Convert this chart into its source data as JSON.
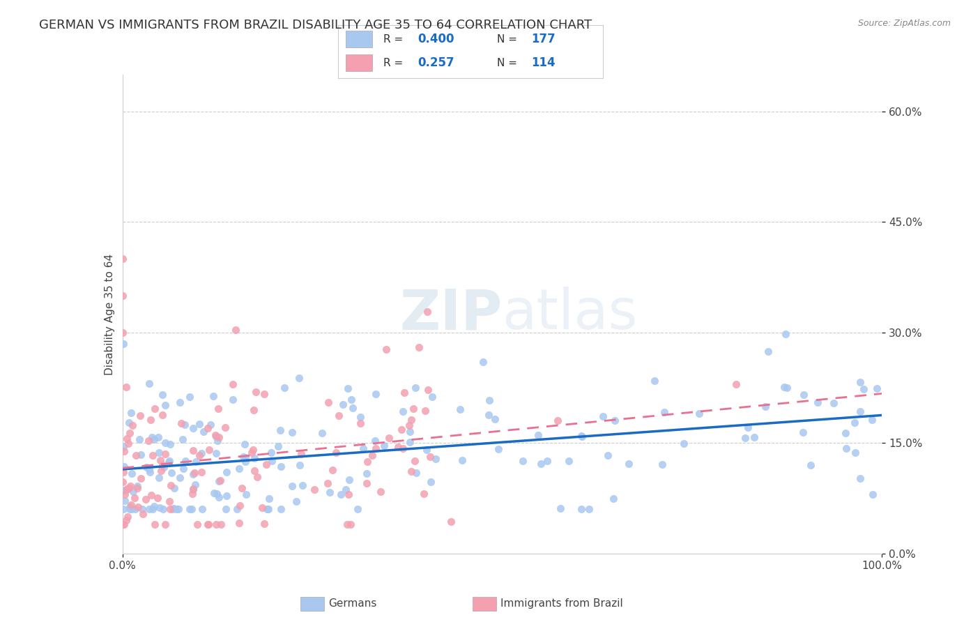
{
  "title": "GERMAN VS IMMIGRANTS FROM BRAZIL DISABILITY AGE 35 TO 64 CORRELATION CHART",
  "source": "Source: ZipAtlas.com",
  "ylabel": "Disability Age 35 to 64",
  "xmin": 0.0,
  "xmax": 1.0,
  "ymin": 0.0,
  "ymax": 0.65,
  "yticks": [
    0.0,
    0.15,
    0.3,
    0.45,
    0.6
  ],
  "ytick_labels": [
    "0.0%",
    "15.0%",
    "30.0%",
    "45.0%",
    "60.0%"
  ],
  "xticks": [
    0.0,
    1.0
  ],
  "xtick_labels": [
    "0.0%",
    "100.0%"
  ],
  "blue_R": 0.4,
  "blue_N": 177,
  "pink_R": 0.257,
  "pink_N": 114,
  "blue_color": "#a8c8f0",
  "pink_color": "#f4a0b0",
  "blue_line_color": "#1a6bc4",
  "pink_line_color": "#e87090",
  "legend_label_blue": "Germans",
  "legend_label_pink": "Immigrants from Brazil",
  "watermark_zip": "ZIP",
  "watermark_atlas": "atlas",
  "background_color": "#ffffff",
  "grid_color": "#cccccc",
  "title_fontsize": 13,
  "axis_label_fontsize": 11,
  "tick_fontsize": 11
}
